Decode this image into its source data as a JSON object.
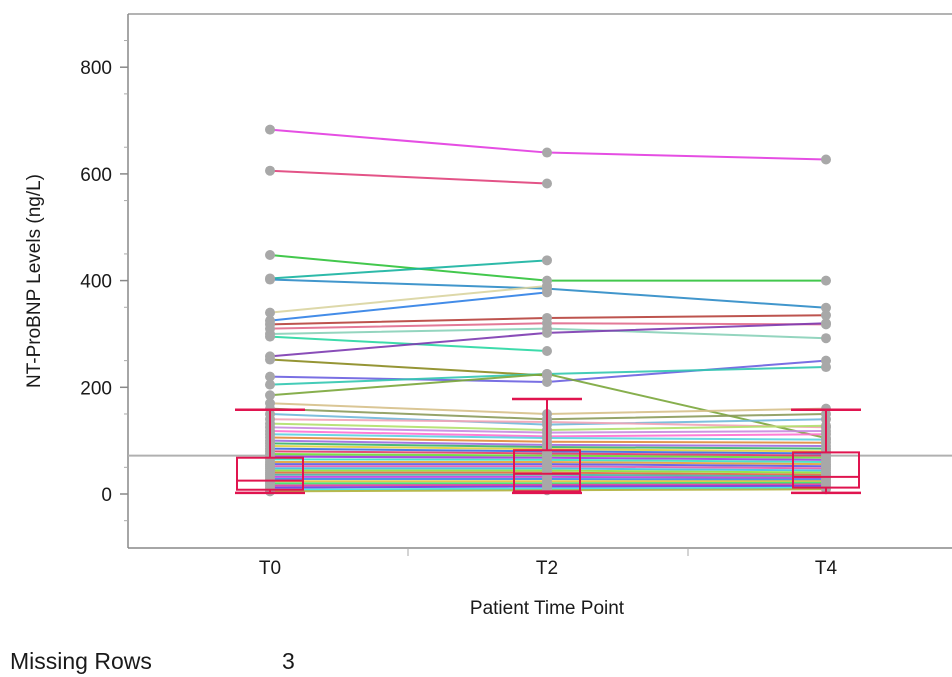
{
  "chart_data": {
    "type": "line",
    "subtype": "parallel-lines-with-box-plots",
    "xlabel": "Patient Time Point",
    "ylabel": "NT-ProBNP Levels (ng/L)",
    "categories": [
      "T0",
      "T2",
      "T4"
    ],
    "ylim": [
      -100,
      900
    ],
    "yticks": [
      0,
      200,
      400,
      600,
      800
    ],
    "reference_line": 72,
    "grid": false,
    "legend": "none",
    "series": [
      {
        "values": [
          683,
          640,
          627
        ],
        "color": "#e23be0"
      },
      {
        "values": [
          606,
          582,
          null
        ],
        "color": "#e0407a"
      },
      {
        "values": [
          448,
          400,
          400
        ],
        "color": "#2fc23a"
      },
      {
        "values": [
          404,
          438,
          null
        ],
        "color": "#16b3a0"
      },
      {
        "values": [
          402,
          385,
          349
        ],
        "color": "#2c8bc6"
      },
      {
        "values": [
          340,
          390,
          null
        ],
        "color": "#d9d4a0"
      },
      {
        "values": [
          325,
          378,
          null
        ],
        "color": "#2f7fe6"
      },
      {
        "values": [
          318,
          330,
          335
        ],
        "color": "#b6403b"
      },
      {
        "values": [
          310,
          320,
          318
        ],
        "color": "#e06a8c"
      },
      {
        "values": [
          300,
          310,
          292
        ],
        "color": "#88d0b8"
      },
      {
        "values": [
          295,
          268,
          null
        ],
        "color": "#28d7a2"
      },
      {
        "values": [
          258,
          302,
          320
        ],
        "color": "#7c3ab0"
      },
      {
        "values": [
          252,
          222,
          null
        ],
        "color": "#8a8a1f"
      },
      {
        "values": [
          220,
          210,
          250
        ],
        "color": "#6a5fe0"
      },
      {
        "values": [
          205,
          225,
          238
        ],
        "color": "#31c7b0"
      },
      {
        "values": [
          185,
          225,
          105
        ],
        "color": "#7aa63a"
      },
      {
        "values": [
          170,
          150,
          160
        ],
        "color": "#d6c08a"
      },
      {
        "values": [
          160,
          140,
          150
        ],
        "color": "#8b9a5a"
      },
      {
        "values": [
          150,
          130,
          140
        ],
        "color": "#6fb8d9"
      },
      {
        "values": [
          140,
          135,
          125
        ],
        "color": "#f2a3b5"
      },
      {
        "values": [
          132,
          120,
          128
        ],
        "color": "#b0e06a"
      },
      {
        "values": [
          125,
          115,
          118
        ],
        "color": "#c78ae0"
      },
      {
        "values": [
          118,
          108,
          112
        ],
        "color": "#ff6fd0"
      },
      {
        "values": [
          112,
          105,
          102
        ],
        "color": "#5ad0e0"
      },
      {
        "values": [
          106,
          98,
          96
        ],
        "color": "#e08a3a"
      },
      {
        "values": [
          100,
          92,
          90
        ],
        "color": "#9a6ae0"
      },
      {
        "values": [
          95,
          88,
          85
        ],
        "color": "#3ab06a"
      },
      {
        "values": [
          90,
          84,
          80
        ],
        "color": "#e0d03a"
      },
      {
        "values": [
          85,
          80,
          76
        ],
        "color": "#3a6ae0"
      },
      {
        "values": [
          80,
          76,
          72
        ],
        "color": "#e03a6a"
      },
      {
        "values": [
          75,
          72,
          68
        ],
        "color": "#6ae03a"
      },
      {
        "values": [
          70,
          68,
          64
        ],
        "color": "#a03ae0"
      },
      {
        "values": [
          65,
          64,
          60
        ],
        "color": "#3ae0c0"
      },
      {
        "values": [
          60,
          60,
          56
        ],
        "color": "#e0a03a"
      },
      {
        "values": [
          56,
          56,
          52
        ],
        "color": "#5a5ae0"
      },
      {
        "values": [
          52,
          52,
          48
        ],
        "color": "#e05ab0"
      },
      {
        "values": [
          48,
          48,
          44
        ],
        "color": "#3ac0e0"
      },
      {
        "values": [
          44,
          44,
          40
        ],
        "color": "#8ae03a"
      },
      {
        "values": [
          40,
          40,
          36
        ],
        "color": "#e06a3a"
      },
      {
        "values": [
          36,
          36,
          33
        ],
        "color": "#4ab0a0"
      },
      {
        "values": [
          32,
          32,
          30
        ],
        "color": "#c03ae0"
      },
      {
        "values": [
          28,
          28,
          27
        ],
        "color": "#3a8ae0"
      },
      {
        "values": [
          24,
          24,
          24
        ],
        "color": "#e0c03a"
      },
      {
        "values": [
          20,
          20,
          21
        ],
        "color": "#3ae06a"
      },
      {
        "values": [
          16,
          17,
          18
        ],
        "color": "#e03aa0"
      },
      {
        "values": [
          12,
          14,
          15
        ],
        "color": "#6a3ae0"
      },
      {
        "values": [
          8,
          10,
          12
        ],
        "color": "#3ae0e0"
      },
      {
        "values": [
          5,
          7,
          9
        ],
        "color": "#b0b03a"
      }
    ],
    "box_plots": [
      {
        "category": "T0",
        "min": 2,
        "q1": 8,
        "median": 25,
        "q3": 68,
        "max": 158
      },
      {
        "category": "T2",
        "min": 2,
        "q1": 5,
        "median": 38,
        "q3": 82,
        "max": 178
      },
      {
        "category": "T4",
        "min": 2,
        "q1": 12,
        "median": 32,
        "q3": 78,
        "max": 158
      }
    ],
    "colors": {
      "point": "#a8a8a8",
      "box": "#e0144f",
      "reference_line": "#b0b0b0",
      "axis": "#888888"
    }
  },
  "footer": {
    "label": "Missing Rows",
    "value": "3"
  }
}
